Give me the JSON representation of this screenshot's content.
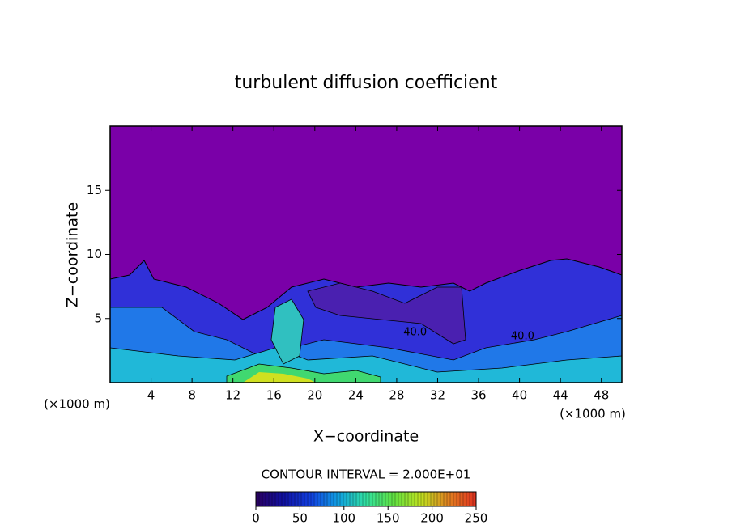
{
  "chart_data": {
    "type": "contour",
    "title": "turbulent diffusion coefficient",
    "xlabel": "X−coordinate",
    "ylabel": "Z−coordinate",
    "x_unit_left": "(×1000 m)",
    "x_unit_right": "(×1000 m)",
    "contour_interval_text": "CONTOUR INTERVAL = 2.000E+01",
    "xlim": [
      0,
      50
    ],
    "xticks": [
      4,
      8,
      12,
      16,
      20,
      24,
      28,
      32,
      36,
      40,
      44,
      48
    ],
    "ylim": [
      0,
      20
    ],
    "yticks": [
      5,
      10,
      15
    ],
    "contour_labels": [
      {
        "x": 29.8,
        "z": 3.9,
        "value": 40,
        "label": "40.0"
      },
      {
        "x": 40.3,
        "z": 3.6,
        "value": 40,
        "label": "40.0"
      }
    ],
    "colorbar": {
      "lim": [
        0,
        250
      ],
      "ticks": [
        0,
        50,
        100,
        150,
        200,
        250
      ],
      "colors": [
        "#2a0060",
        "#1010a0",
        "#1040e0",
        "#10a0e0",
        "#30e0a0",
        "#60e040",
        "#c0e020",
        "#e08020",
        "#e03020"
      ]
    }
  }
}
